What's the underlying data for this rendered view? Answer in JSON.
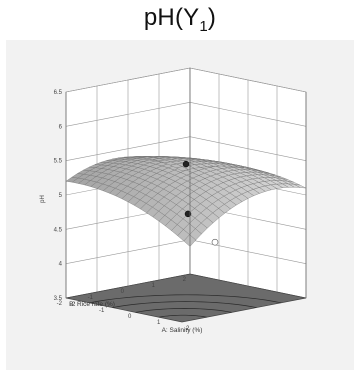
{
  "title_main": "pH(Y",
  "title_sub": "1",
  "title_close": ")",
  "chart_data": {
    "type": "surface3d",
    "title": "pH(Y1)",
    "zlabel": "pH",
    "xlabel": "A: Salinity (%)",
    "ylabel": "B: Rice rate (%)",
    "x_ticks": [
      "-2",
      "-1",
      "0",
      "1",
      "2"
    ],
    "y_ticks": [
      "-2",
      "-1",
      "0",
      "1",
      "2"
    ],
    "z_ticks": [
      "3.5",
      "4",
      "4.5",
      "5",
      "5.5",
      "6",
      "6.5"
    ],
    "xlim": [
      -2,
      2
    ],
    "ylim": [
      -2,
      2
    ],
    "zlim": [
      3.5,
      6.5
    ],
    "grid": true,
    "surface_corners": [
      {
        "A": 2,
        "B": -2,
        "pH": 5.7
      },
      {
        "A": -2,
        "B": 2,
        "pH": 3.9
      },
      {
        "A": 2,
        "B": 2,
        "pH": 5.1
      },
      {
        "A": -2,
        "B": -2,
        "pH": 5.2
      }
    ],
    "design_points": [
      {
        "A": 0,
        "B": 0,
        "pH": 5.45,
        "position": "above"
      },
      {
        "A": -1,
        "B": 1,
        "pH": 4.55,
        "position": "above"
      },
      {
        "A": 1,
        "B": 0,
        "pH": 4.4,
        "position": "below"
      }
    ],
    "surface_color": "#cfcfcf",
    "floor_color": "#6b6b6b"
  }
}
